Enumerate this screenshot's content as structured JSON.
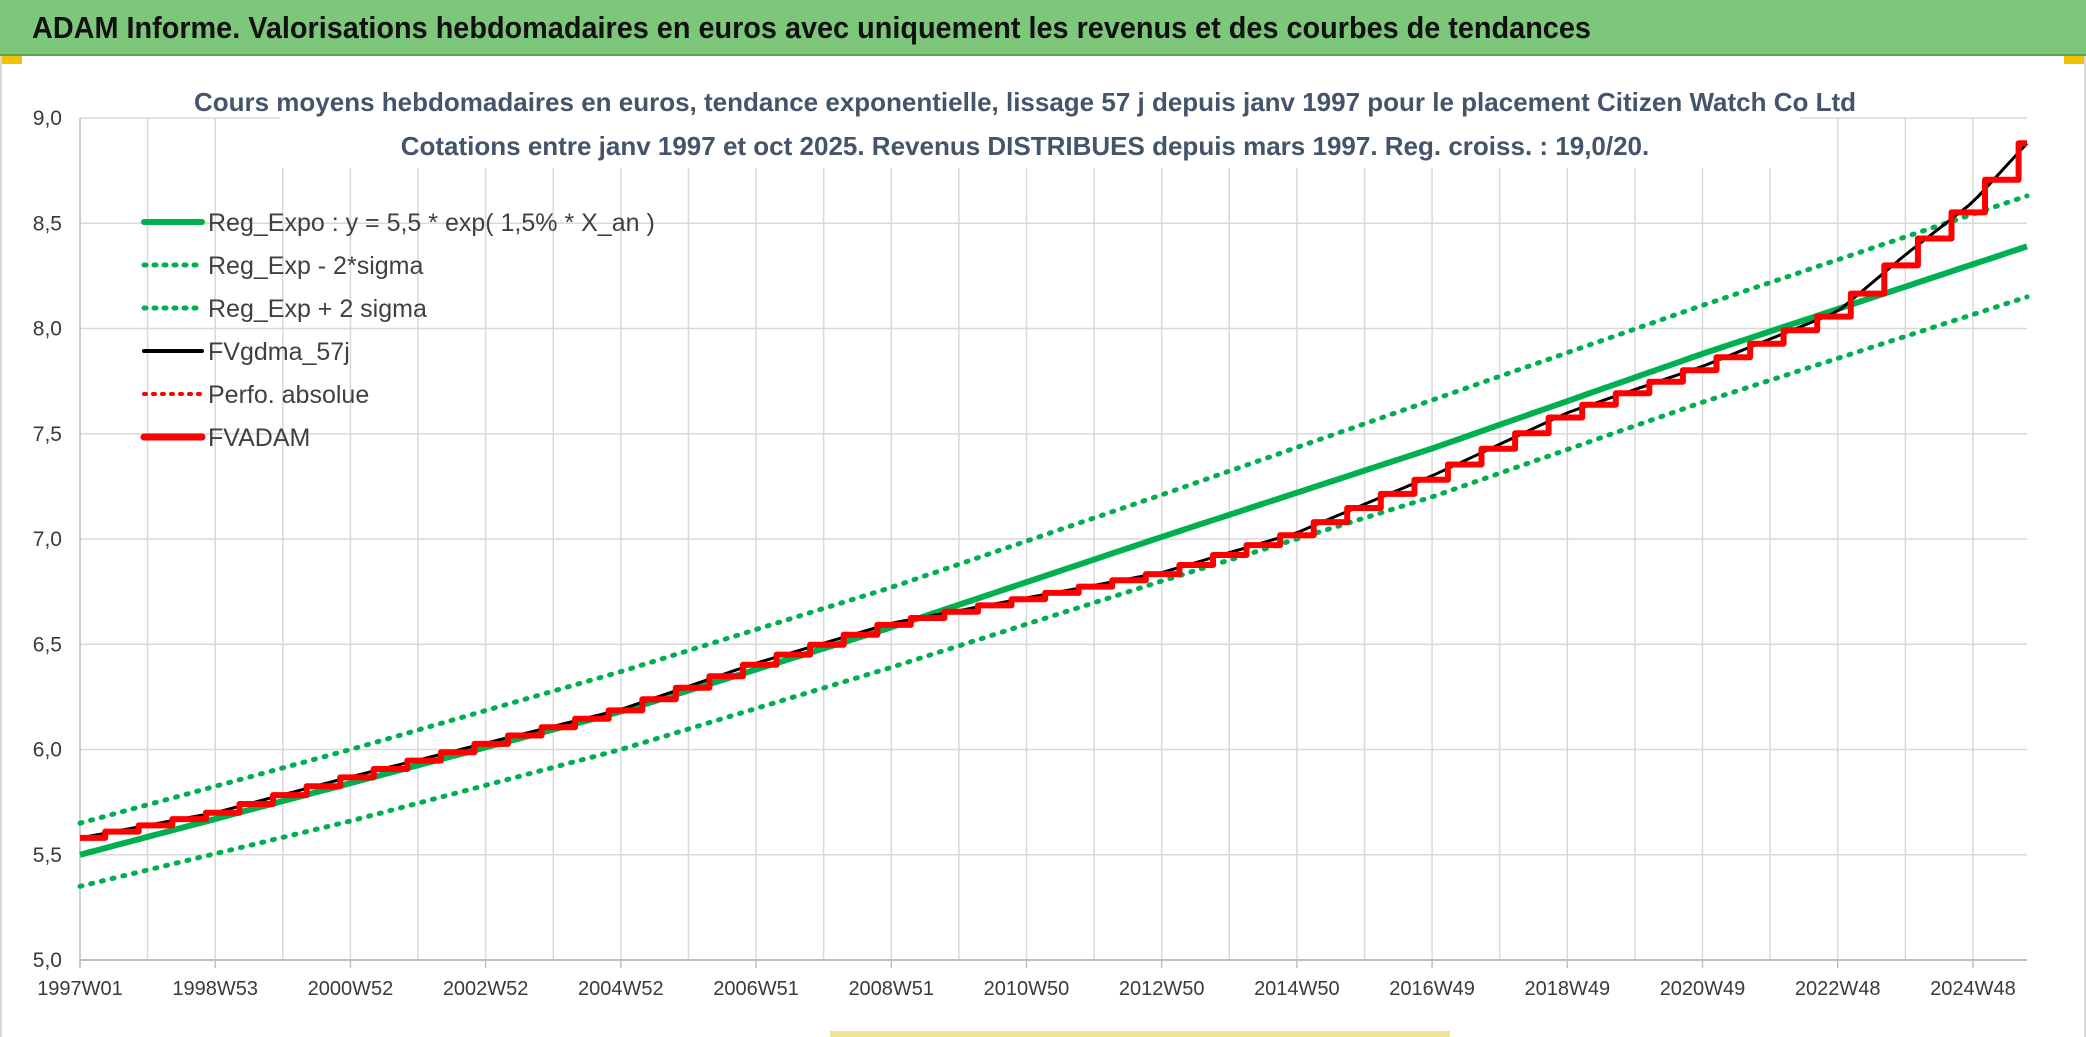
{
  "banner": {
    "title": "ADAM Informe. Valorisations hebdomadaires en euros avec uniquement les revenus et des courbes de tendances"
  },
  "colors": {
    "banner_bg": "#7dc77a",
    "trend_green": "#00b050",
    "gdma_black": "#000000",
    "adam_red": "#ff0000",
    "grid": "#d9d9d9"
  },
  "chart_data": {
    "type": "line",
    "title_lines": [
      "Cours moyens hebdomadaires en euros, tendance exponentielle, lissage 57 j depuis janv 1997 pour le placement Citizen Watch Co Ltd",
      "Cotations entre janv 1997 et oct 2025. Revenus DISTRIBUES depuis mars 1997. Reg. croiss. : 19,0/20."
    ],
    "y_ticks": [
      "5,0",
      "5,5",
      "6,0",
      "6,5",
      "7,0",
      "7,5",
      "8,0",
      "8,5",
      "9,0"
    ],
    "ylim": [
      5.0,
      9.0
    ],
    "x_ticks": [
      "1997W01",
      "1998W53",
      "2000W52",
      "2002W52",
      "2004W52",
      "2006W51",
      "2008W51",
      "2010W50",
      "2012W50",
      "2014W50",
      "2016W49",
      "2018W49",
      "2020W49",
      "2022W48",
      "2024W48"
    ],
    "x_range_years": [
      1997.0,
      2025.8
    ],
    "legend": [
      {
        "label": "Reg_Expo : y = 5,5 * exp( 1,5% *  X_an )",
        "style": "solid-green"
      },
      {
        "label": "Reg_Exp - 2*sigma",
        "style": "dotted-green"
      },
      {
        "label": "Reg_Exp + 2 sigma",
        "style": "dotted-green"
      },
      {
        "label": "FVgdma_57j",
        "style": "solid-black"
      },
      {
        "label": "Perfo. absolue",
        "style": "dotted-red"
      },
      {
        "label": "FVADAM",
        "style": "solid-red"
      }
    ],
    "series": [
      {
        "name": "Reg_Expo : y = 5,5 * exp( 1,5% *  X_an )",
        "x": [
          1997.0,
          2001.0,
          2005.0,
          2009.0,
          2013.0,
          2017.0,
          2021.0,
          2025.8
        ],
        "values": [
          5.5,
          5.84,
          6.18,
          6.58,
          7.01,
          7.43,
          7.88,
          8.39
        ]
      },
      {
        "name": "Reg_Exp - 2*sigma",
        "x": [
          1997.0,
          2001.0,
          2005.0,
          2009.0,
          2013.0,
          2017.0,
          2021.0,
          2025.8
        ],
        "values": [
          5.35,
          5.66,
          6.0,
          6.39,
          6.8,
          7.2,
          7.65,
          8.15
        ]
      },
      {
        "name": "Reg_Exp + 2 sigma",
        "x": [
          1997.0,
          2001.0,
          2005.0,
          2009.0,
          2013.0,
          2017.0,
          2021.0,
          2025.8
        ],
        "values": [
          5.65,
          6.0,
          6.37,
          6.77,
          7.21,
          7.66,
          8.11,
          8.63
        ]
      },
      {
        "name": "FVADAM",
        "x": [
          1997.0,
          1999.0,
          2001.0,
          2003.0,
          2005.0,
          2007.0,
          2009.0,
          2011.0,
          2013.0,
          2015.0,
          2017.0,
          2019.0,
          2021.0,
          2023.0,
          2024.0,
          2025.0,
          2025.8
        ],
        "values": [
          5.58,
          5.7,
          5.87,
          6.03,
          6.19,
          6.41,
          6.6,
          6.72,
          6.84,
          7.03,
          7.3,
          7.6,
          7.82,
          8.08,
          8.35,
          8.6,
          8.88
        ]
      }
    ]
  }
}
